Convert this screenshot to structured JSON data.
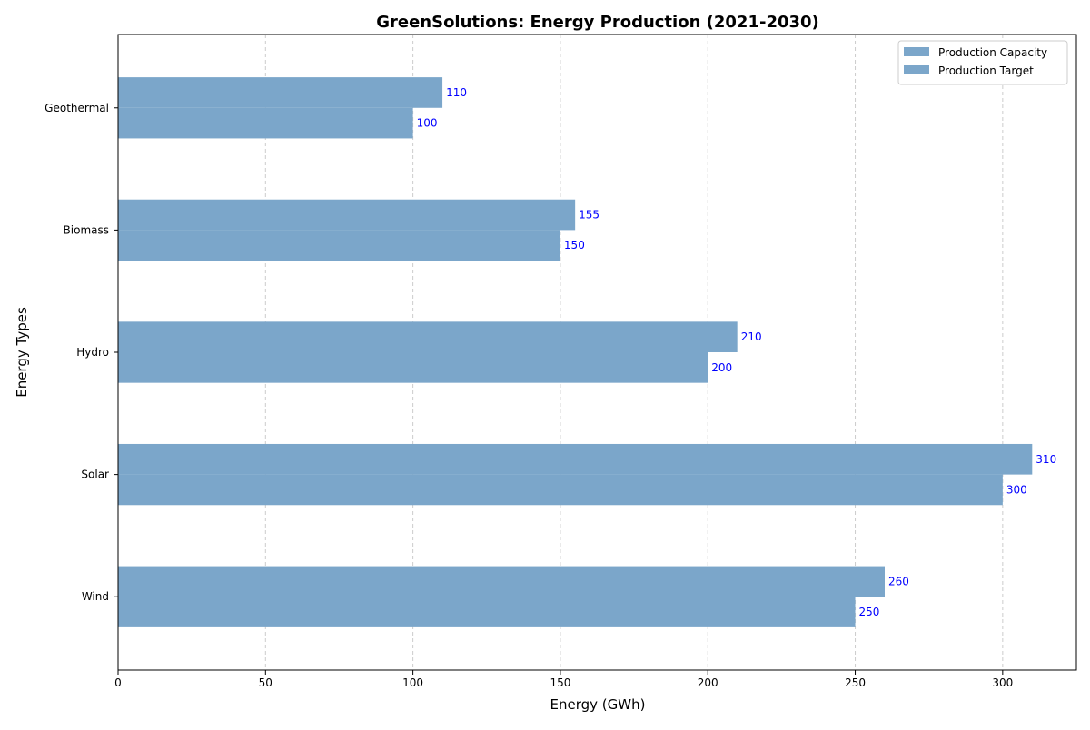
{
  "chart_data": {
    "type": "bar",
    "orientation": "horizontal",
    "title": "GreenSolutions: Energy Production (2021-2030)",
    "xlabel": "Energy (GWh)",
    "ylabel": "Energy Types",
    "categories": [
      "Wind",
      "Solar",
      "Hydro",
      "Biomass",
      "Geothermal"
    ],
    "series": [
      {
        "name": "Production Capacity",
        "values": [
          260,
          310,
          210,
          155,
          110
        ],
        "color": "#7ba6ca"
      },
      {
        "name": "Production Target",
        "values": [
          250,
          300,
          200,
          150,
          100
        ],
        "color": "#7ba6ca"
      }
    ],
    "xlim": [
      0,
      325
    ],
    "xticks": [
      0,
      50,
      100,
      150,
      200,
      250,
      300
    ],
    "grid": "x-dashed",
    "legend": "top-right",
    "data_label_color": "#0000ff"
  }
}
